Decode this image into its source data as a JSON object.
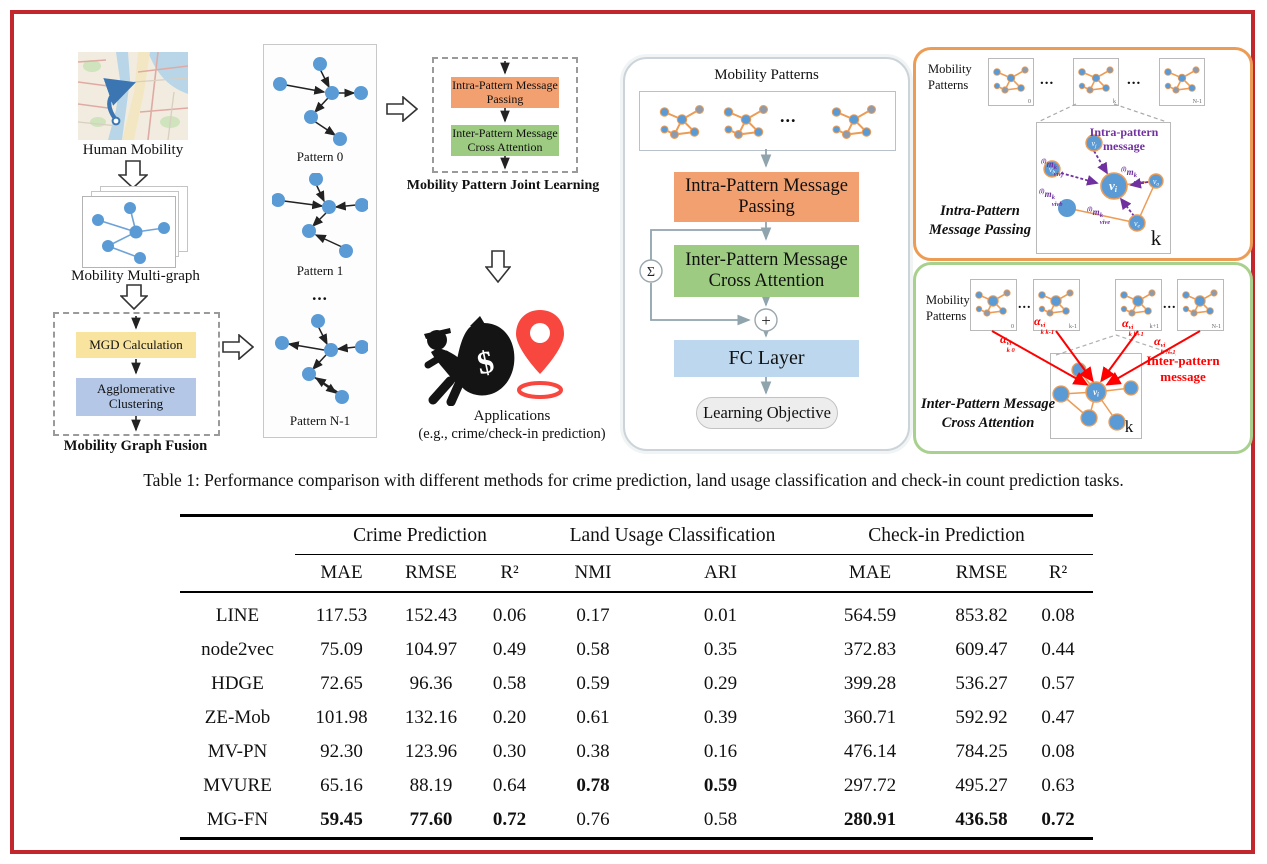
{
  "colors": {
    "frame_red": "#c1272d",
    "node_blue": "#5b9bd5",
    "edge_orange": "#ed9c55",
    "intra_orange": "#f2a06f",
    "inter_green": "#9ccb81",
    "fc_blue": "#bdd7ee",
    "mgd_yellow": "#f8e49e",
    "cluster_blue": "#b4c7e7",
    "purple": "#7030a0",
    "red": "#ff0000"
  },
  "figure": {
    "left": {
      "map_label": "Human Mobility",
      "multigraph_label": "Mobility Multi-graph",
      "mgd_box": "MGD Calculation",
      "cluster_box": "Agglomerative Clustering",
      "fusion_label": "Mobility Graph Fusion"
    },
    "patterns": {
      "p0": "Pattern 0",
      "p1": "Pattern 1",
      "dots": "...",
      "pn": "Pattern N-1"
    },
    "joint": {
      "intra_box": "Intra-Pattern Message Passing",
      "inter_box": "Inter-Pattern Message Cross Attention",
      "label": "Mobility Pattern Joint Learning"
    },
    "apps": {
      "dollar": "$",
      "label": "Applications",
      "sublabel": "(e.g., crime/check-in prediction)"
    },
    "pipeline": {
      "title": "Mobility Patterns",
      "dots": "...",
      "intra_box": "Intra-Pattern Message Passing",
      "inter_box": "Inter-Pattern Message Cross Attention",
      "fc_box": "FC Layer",
      "objective": "Learning Objective",
      "sigma": "Σ",
      "plus": "+"
    },
    "intra_panel": {
      "patterns_label": "Mobility Patterns",
      "dots1": "...",
      "dots2": "...",
      "idx0": "0",
      "idxk": "k",
      "idxn": "N-1",
      "message_label": "Intra-pattern message",
      "title": "Intra-Pattern Message Passing",
      "k": "k",
      "nodes": {
        "vi": {
          "base": "v",
          "sub": "i"
        },
        "vj": {
          "base": "v",
          "sub": "j"
        },
        "vb": {
          "base": "v",
          "sub": "b"
        },
        "va": {
          "base": "v",
          "sub": "a"
        },
        "ve": {
          "base": "v",
          "sub": "e"
        }
      },
      "messages": {
        "mj": {
          "pre": "(l)",
          "base": "m",
          "sup": "k",
          "sub": "vivj"
        },
        "ma": {
          "pre": "(l)",
          "base": "m",
          "sup": "k",
          "sub": "viva"
        },
        "mb": {
          "pre": "(l)",
          "base": "m",
          "sup": "k",
          "sub": "vivb"
        },
        "me": {
          "pre": "(l)",
          "base": "m",
          "sup": "k",
          "sub": "vive"
        }
      }
    },
    "inter_panel": {
      "patterns_label": "Mobility Patterns",
      "dots1": "...",
      "dots2": "...",
      "idx0": "0",
      "idxk1": "k-1",
      "idxk2": "k+1",
      "idxn": "N-1",
      "alphas": {
        "a0": {
          "base": "α",
          "sup": "vi",
          "sub": "k 0"
        },
        "a1": {
          "base": "α",
          "sup": "vi",
          "sub": "k k-1"
        },
        "a2": {
          "base": "α",
          "sup": "vi",
          "sub": "k k+1"
        },
        "a3": {
          "base": "α",
          "sup": "vi",
          "sub": "k N-1"
        }
      },
      "message_label": "Inter-pattern message",
      "title": "Inter-Pattern Message Cross Attention",
      "k": "k",
      "vi": {
        "base": "v",
        "sub": "i"
      }
    }
  },
  "caption": "Table 1: Performance comparison with different methods for crime prediction, land usage classification and check-in count prediction tasks.",
  "table": {
    "groups": [
      {
        "label": "Crime Prediction"
      },
      {
        "label": "Land Usage Classification"
      },
      {
        "label": "Check-in Prediction"
      }
    ],
    "subheaders": [
      "MAE",
      "RMSE",
      "R²",
      "NMI",
      "ARI",
      "MAE",
      "RMSE",
      "R²"
    ],
    "rows": [
      {
        "method": "LINE",
        "values": [
          "117.53",
          "152.43",
          "0.06",
          "0.17",
          "0.01",
          "564.59",
          "853.82",
          "0.08"
        ],
        "bold": [
          0,
          0,
          0,
          0,
          0,
          0,
          0,
          0
        ]
      },
      {
        "method": "node2vec",
        "values": [
          "75.09",
          "104.97",
          "0.49",
          "0.58",
          "0.35",
          "372.83",
          "609.47",
          "0.44"
        ],
        "bold": [
          0,
          0,
          0,
          0,
          0,
          0,
          0,
          0
        ]
      },
      {
        "method": "HDGE",
        "values": [
          "72.65",
          "96.36",
          "0.58",
          "0.59",
          "0.29",
          "399.28",
          "536.27",
          "0.57"
        ],
        "bold": [
          0,
          0,
          0,
          0,
          0,
          0,
          0,
          0
        ]
      },
      {
        "method": "ZE-Mob",
        "values": [
          "101.98",
          "132.16",
          "0.20",
          "0.61",
          "0.39",
          "360.71",
          "592.92",
          "0.47"
        ],
        "bold": [
          0,
          0,
          0,
          0,
          0,
          0,
          0,
          0
        ]
      },
      {
        "method": "MV-PN",
        "values": [
          "92.30",
          "123.96",
          "0.30",
          "0.38",
          "0.16",
          "476.14",
          "784.25",
          "0.08"
        ],
        "bold": [
          0,
          0,
          0,
          0,
          0,
          0,
          0,
          0
        ]
      },
      {
        "method": "MVURE",
        "values": [
          "65.16",
          "88.19",
          "0.64",
          "0.78",
          "0.59",
          "297.72",
          "495.27",
          "0.63"
        ],
        "bold": [
          0,
          0,
          0,
          1,
          1,
          0,
          0,
          0
        ]
      },
      {
        "method": "MG-FN",
        "values": [
          "59.45",
          "77.60",
          "0.72",
          "0.76",
          "0.58",
          "280.91",
          "436.58",
          "0.72"
        ],
        "bold": [
          1,
          1,
          1,
          0,
          0,
          1,
          1,
          1
        ]
      }
    ]
  },
  "chart_data": {
    "type": "table",
    "title": "Performance comparison with different methods",
    "column_groups": [
      "Crime Prediction",
      "Crime Prediction",
      "Crime Prediction",
      "Land Usage Classification",
      "Land Usage Classification",
      "Check-in Prediction",
      "Check-in Prediction",
      "Check-in Prediction"
    ],
    "columns": [
      "MAE",
      "RMSE",
      "R2",
      "NMI",
      "ARI",
      "MAE",
      "RMSE",
      "R2"
    ],
    "methods": [
      "LINE",
      "node2vec",
      "HDGE",
      "ZE-Mob",
      "MV-PN",
      "MVURE",
      "MG-FN"
    ],
    "values": [
      [
        117.53,
        152.43,
        0.06,
        0.17,
        0.01,
        564.59,
        853.82,
        0.08
      ],
      [
        75.09,
        104.97,
        0.49,
        0.58,
        0.35,
        372.83,
        609.47,
        0.44
      ],
      [
        72.65,
        96.36,
        0.58,
        0.59,
        0.29,
        399.28,
        536.27,
        0.57
      ],
      [
        101.98,
        132.16,
        0.2,
        0.61,
        0.39,
        360.71,
        592.92,
        0.47
      ],
      [
        92.3,
        123.96,
        0.3,
        0.38,
        0.16,
        476.14,
        784.25,
        0.08
      ],
      [
        65.16,
        88.19,
        0.64,
        0.78,
        0.59,
        297.72,
        495.27,
        0.63
      ],
      [
        59.45,
        77.6,
        0.72,
        0.76,
        0.58,
        280.91,
        436.58,
        0.72
      ]
    ],
    "bold_best": {
      "MVURE": [
        "NMI",
        "ARI"
      ],
      "MG-FN": [
        "Crime MAE",
        "Crime RMSE",
        "Crime R2",
        "Check-in MAE",
        "Check-in RMSE",
        "Check-in R2"
      ]
    }
  }
}
